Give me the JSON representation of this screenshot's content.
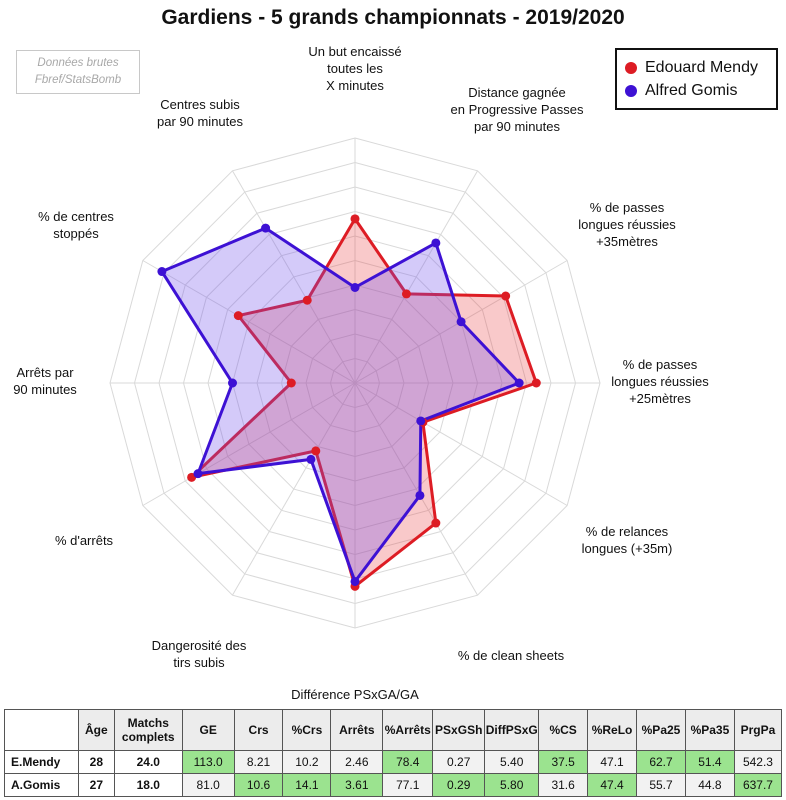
{
  "chart_data": {
    "type": "radar",
    "title": "Gardiens - 5 grands championnats - 2019/2020",
    "source": [
      "Données brutes",
      "Fbref/StatsBomb"
    ],
    "axes": [
      {
        "label": [
          "Un but encaissé",
          "toutes les",
          "X minutes"
        ]
      },
      {
        "label": [
          "Distance gagnée",
          "en Progressive Passes",
          "par 90 minutes"
        ]
      },
      {
        "label": [
          "% de passes",
          "longues réussies",
          "+35mètres"
        ]
      },
      {
        "label": [
          "% de passes",
          "longues réussies",
          "+25mètres"
        ]
      },
      {
        "label": [
          "% de relances",
          "longues (+35m)"
        ]
      },
      {
        "label": [
          "% de clean sheets"
        ]
      },
      {
        "label": [
          "Différence PSxGA/GA"
        ]
      },
      {
        "label": [
          "Dangerosité des",
          "tirs subis"
        ]
      },
      {
        "label": [
          "% d'arrêts"
        ]
      },
      {
        "label": [
          "Arrêts par",
          "90 minutes"
        ]
      },
      {
        "label": [
          "% de centres",
          "stoppés"
        ]
      },
      {
        "label": [
          "Centres subis",
          "par 90 minutes"
        ]
      }
    ],
    "rmax": 10,
    "series": [
      {
        "name": "Edouard Mendy",
        "color": "#dd1c24",
        "values": [
          6.7,
          4.2,
          7.1,
          7.4,
          3.2,
          6.6,
          8.3,
          3.2,
          7.7,
          2.6,
          5.5,
          3.9
        ]
      },
      {
        "name": "Alfred Gomis",
        "color": "#3d11d4",
        "values": [
          3.9,
          6.6,
          5.0,
          6.7,
          3.1,
          5.3,
          8.1,
          3.6,
          7.4,
          5.0,
          9.1,
          7.3
        ]
      }
    ]
  },
  "table": {
    "headers": [
      "",
      "Âge",
      "Matchs complets",
      "GE",
      "Crs",
      "%Crs",
      "Arrêts",
      "%Arrêts",
      "PSxGSh",
      "DiffPSxG",
      "%CS",
      "%ReLo",
      "%Pa25",
      "%Pa35",
      "PrgPa"
    ],
    "rows": [
      {
        "name": "E.Mendy",
        "age": "28",
        "matchs": "24.0",
        "values": [
          "113.0",
          "8.21",
          "10.2",
          "2.46",
          "78.4",
          "0.27",
          "5.40",
          "37.5",
          "47.1",
          "62.7",
          "51.4",
          "542.3"
        ],
        "green": [
          true,
          false,
          false,
          false,
          true,
          false,
          false,
          true,
          false,
          true,
          true,
          false
        ]
      },
      {
        "name": "A.Gomis",
        "age": "27",
        "matchs": "18.0",
        "values": [
          "81.0",
          "10.6",
          "14.1",
          "3.61",
          "77.1",
          "0.29",
          "5.80",
          "31.6",
          "47.4",
          "55.7",
          "44.8",
          "637.7"
        ],
        "green": [
          false,
          true,
          true,
          true,
          false,
          true,
          true,
          false,
          true,
          false,
          false,
          true
        ]
      }
    ]
  }
}
